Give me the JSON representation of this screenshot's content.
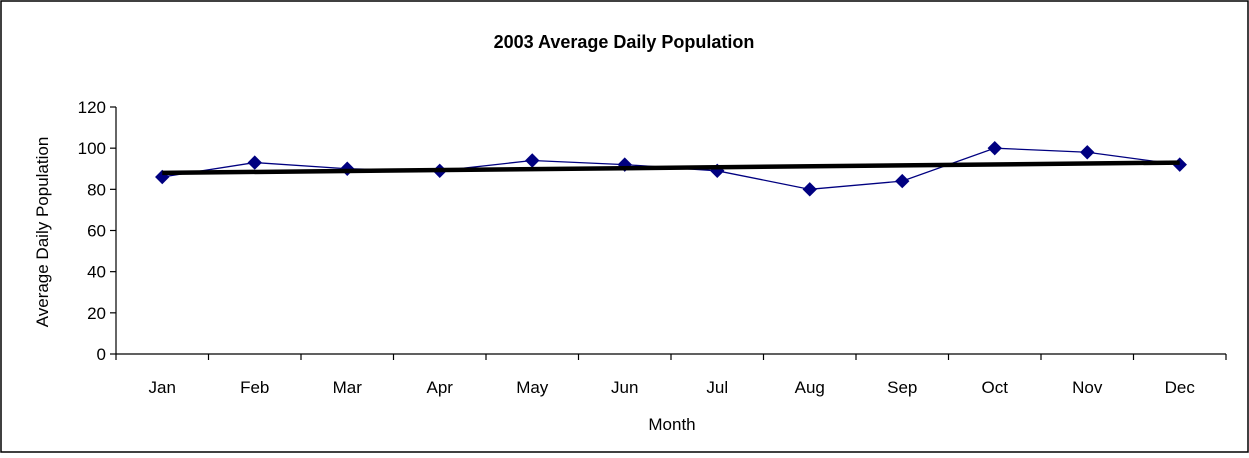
{
  "chart_data": {
    "type": "line",
    "title": "2003 Average Daily Population",
    "xlabel": "Month",
    "ylabel": "Average Daily Population",
    "categories": [
      "Jan",
      "Feb",
      "Mar",
      "Apr",
      "May",
      "Jun",
      "Jul",
      "Aug",
      "Sep",
      "Oct",
      "Nov",
      "Dec"
    ],
    "series": [
      {
        "values": [
          86,
          93,
          90,
          89,
          94,
          92,
          89,
          80,
          84,
          100,
          98,
          92
        ]
      }
    ],
    "trendline": {
      "type": "linear",
      "start": 88,
      "end": 93
    },
    "ylim": [
      0,
      120
    ],
    "yticks": [
      0,
      20,
      40,
      60,
      80,
      100,
      120
    ],
    "grid": false,
    "legend": "none",
    "colors": {
      "series": "#000080",
      "trendline": "#000000",
      "axis": "#000000",
      "border": "#000000"
    }
  }
}
